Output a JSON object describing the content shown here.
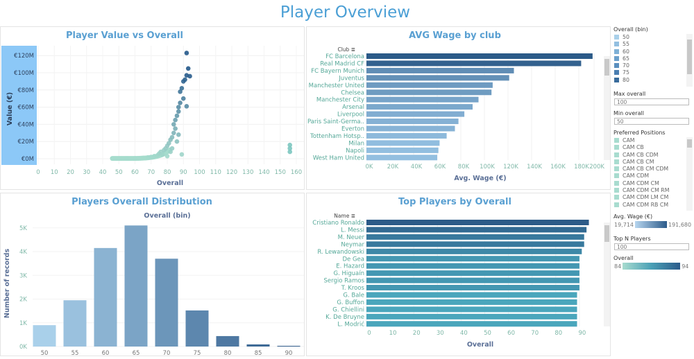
{
  "title": "Player Overview",
  "scatter": {
    "title": "Player Value vs Overall",
    "xlabel": "Overall",
    "ylabel": "Value (€)"
  },
  "wage": {
    "title": "AVG Wage by club",
    "dim": "Club",
    "xlabel": "Avg. Wage (€)"
  },
  "hist": {
    "title": "Players Overall Distribution",
    "xlabel": "Overall (bin)",
    "ylabel": "Number of records"
  },
  "top": {
    "title": "Top Players by Overall",
    "dim": "Name",
    "xlabel": "Overall"
  },
  "chart_data": [
    {
      "type": "scatter",
      "title": "Player Value vs Overall",
      "xlabel": "Overall",
      "ylabel": "Value (€)",
      "xlim": [
        0,
        160
      ],
      "ylim": [
        0,
        120
      ],
      "xticks": [
        "0",
        "10",
        "20",
        "30",
        "40",
        "50",
        "60",
        "70",
        "80",
        "90",
        "100",
        "110",
        "120",
        "130",
        "140",
        "150",
        "160"
      ],
      "yticks": [
        "€0M",
        "€20M",
        "€40M",
        "€60M",
        "€80M",
        "€100M",
        "€120M"
      ],
      "points": [
        [
          46,
          0.3
        ],
        [
          50,
          0.3
        ],
        [
          55,
          0.4
        ],
        [
          60,
          0.5
        ],
        [
          65,
          0.8
        ],
        [
          68,
          1.5
        ],
        [
          70,
          2
        ],
        [
          72,
          3
        ],
        [
          74,
          4
        ],
        [
          75,
          6
        ],
        [
          76,
          8
        ],
        [
          77,
          5
        ],
        [
          78,
          10
        ],
        [
          79,
          12
        ],
        [
          80,
          15
        ],
        [
          80,
          3
        ],
        [
          81,
          18
        ],
        [
          82,
          22
        ],
        [
          82,
          8
        ],
        [
          83,
          25
        ],
        [
          83,
          12
        ],
        [
          84,
          30
        ],
        [
          84,
          40
        ],
        [
          85,
          35
        ],
        [
          85,
          45
        ],
        [
          86,
          50
        ],
        [
          86,
          20
        ],
        [
          87,
          55
        ],
        [
          87,
          28
        ],
        [
          87,
          60
        ],
        [
          88,
          65
        ],
        [
          88,
          78
        ],
        [
          89,
          5
        ],
        [
          89,
          82
        ],
        [
          90,
          90
        ],
        [
          90,
          70
        ],
        [
          91,
          92
        ],
        [
          92,
          97
        ],
        [
          92,
          61
        ],
        [
          92,
          123
        ],
        [
          93,
          105
        ],
        [
          94,
          96
        ],
        [
          156,
          8
        ],
        [
          156,
          12
        ],
        [
          156,
          16
        ]
      ],
      "color_range": [
        84,
        94
      ]
    },
    {
      "type": "bar",
      "orientation": "horizontal",
      "title": "AVG Wage by club",
      "xlabel": "Avg. Wage (€)",
      "xlim": [
        0,
        200000
      ],
      "xticks": [
        "0K",
        "20K",
        "40K",
        "60K",
        "80K",
        "100K",
        "120K",
        "140K",
        "160K",
        "180K",
        "200K"
      ],
      "categories": [
        "FC Barcelona",
        "Real Madrid CF",
        "FC Bayern Munich",
        "Juventus",
        "Manchester United",
        "Chelsea",
        "Manchester City",
        "Arsenal",
        "Liverpool",
        "Paris Saint-Germa..",
        "Everton",
        "Tottenham Hotsp..",
        "Milan",
        "Napoli",
        "West Ham United"
      ],
      "values": [
        191680,
        182000,
        125000,
        121000,
        107000,
        106000,
        95000,
        90000,
        83000,
        78000,
        75000,
        68000,
        62000,
        61000,
        60000
      ]
    },
    {
      "type": "bar",
      "title": "Players Overall Distribution",
      "xlabel": "Overall (bin)",
      "ylabel": "Number of records",
      "ylim": [
        0,
        5000
      ],
      "yticks": [
        "0K",
        "1K",
        "2K",
        "3K",
        "4K",
        "5K"
      ],
      "categories": [
        "50",
        "55",
        "60",
        "65",
        "70",
        "75",
        "80",
        "85",
        "90"
      ],
      "values": [
        900,
        1950,
        4150,
        5100,
        3700,
        1520,
        440,
        90,
        15
      ]
    },
    {
      "type": "bar",
      "orientation": "horizontal",
      "title": "Top Players by Overall",
      "xlabel": "Overall",
      "xlim": [
        0,
        95
      ],
      "xticks": [
        "0",
        "10",
        "20",
        "30",
        "40",
        "50",
        "60",
        "70",
        "80",
        "90"
      ],
      "categories": [
        "Cristiano Ronaldo",
        "L. Messi",
        "M. Neuer",
        "Neymar",
        "R. Lewandowski",
        "De Gea",
        "E. Hazard",
        "G. Higuaín",
        "Sergio Ramos",
        "T. Kroos",
        "G. Bale",
        "G. Buffon",
        "G. Chiellini",
        "K. De Bruyne",
        "L. Modrić"
      ],
      "values": [
        94,
        93,
        92,
        92,
        91,
        90,
        90,
        90,
        90,
        90,
        89,
        89,
        89,
        89,
        89
      ]
    }
  ],
  "side": {
    "bin_title": "Overall (bin)",
    "bins": [
      {
        "label": "50",
        "color": "#a9d0ea"
      },
      {
        "label": "55",
        "color": "#93bfe0"
      },
      {
        "label": "60",
        "color": "#7eb0d6"
      },
      {
        "label": "65",
        "color": "#6a9fcb"
      },
      {
        "label": "70",
        "color": "#5a8fbe"
      },
      {
        "label": "75",
        "color": "#4a7eb0"
      },
      {
        "label": "80",
        "color": "#3a6c9c"
      }
    ],
    "max_label": "Max overall",
    "max_value": "100",
    "min_label": "Min overall",
    "min_value": "50",
    "pos_title": "Preferred Positions",
    "positions": [
      "CAM",
      "CAM CB",
      "CAM CB CDM",
      "CAM CB CM",
      "CAM CB CM CDM",
      "CAM CDM",
      "CAM CDM CM",
      "CAM CDM CM RM",
      "CAM CDM LM CM",
      "CAM CDM RB CM"
    ],
    "wage_title": "Avg. Wage (€)",
    "wage_min": "19,714",
    "wage_max": "191,680",
    "topn_label": "Top N Players",
    "topn_value": "100",
    "overall_title": "Overall",
    "overall_min": "84",
    "overall_max": "94"
  }
}
